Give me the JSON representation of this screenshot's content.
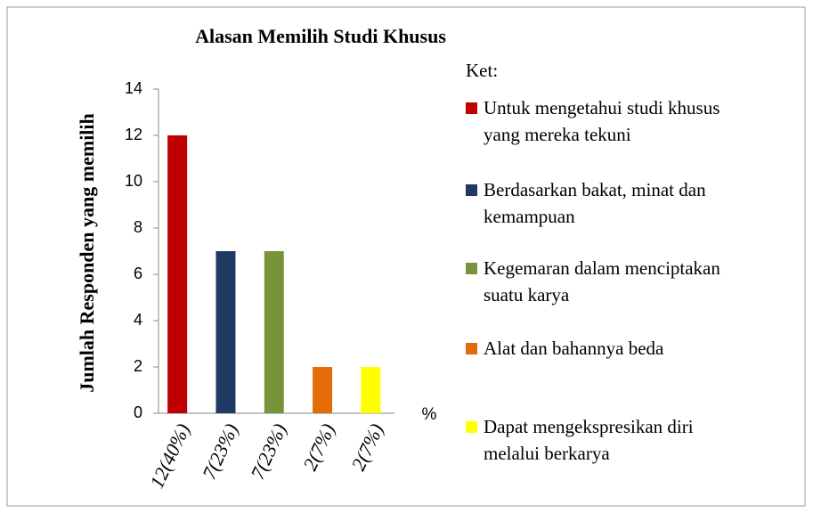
{
  "chart_data": {
    "type": "bar",
    "title": "Alasan Memilih Studi Khusus",
    "ylabel": "Jumlah Responden yang memilih",
    "xlabel": "%",
    "categories": [
      "12(40%)",
      "7(23%)",
      "7(23%)",
      "2(7%)",
      "2(7%)"
    ],
    "values": [
      12,
      7,
      7,
      2,
      2
    ],
    "colors": [
      "#c00000",
      "#1f3864",
      "#77933c",
      "#e36c09",
      "#ffff00"
    ],
    "legend_title": "Ket:",
    "legend_labels": [
      "Untuk mengetahui studi khusus yang mereka tekuni",
      "Berdasarkan bakat, minat dan kemampuan",
      "Kegemaran dalam menciptakan suatu karya",
      "Alat dan bahannya beda",
      "Dapat mengekspresikan diri melalui berkarya"
    ],
    "ylim": [
      0,
      14
    ],
    "yticks": [
      0,
      2,
      4,
      6,
      8,
      10,
      12,
      14
    ],
    "grid": false
  }
}
